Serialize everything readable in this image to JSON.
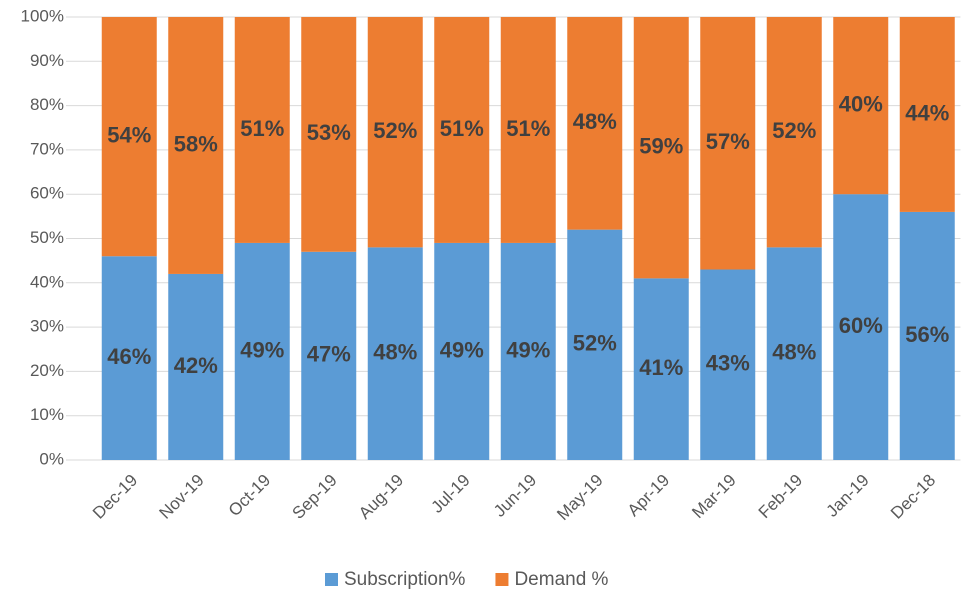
{
  "chart_data": {
    "type": "stacked_bar",
    "categories": [
      "Dec-19",
      "Nov-19",
      "Oct-19",
      "Sep-19",
      "Aug-19",
      "Jul-19",
      "Jun-19",
      "May-19",
      "Apr-19",
      "Mar-19",
      "Feb-19",
      "Jan-19",
      "Dec-18"
    ],
    "series": [
      {
        "name": "Subscription%",
        "color": "#5b9bd5",
        "values": [
          46,
          42,
          49,
          47,
          48,
          49,
          49,
          52,
          41,
          43,
          48,
          60,
          56
        ],
        "value_labels": [
          "46%",
          "42%",
          "49%",
          "47%",
          "48%",
          "49%",
          "49%",
          "52%",
          "41%",
          "43%",
          "48%",
          "60%",
          "56%"
        ]
      },
      {
        "name": "Demand %",
        "color": "#ed7d31",
        "values": [
          54,
          58,
          51,
          53,
          52,
          51,
          51,
          48,
          59,
          57,
          52,
          40,
          44
        ],
        "value_labels": [
          "54%",
          "58%",
          "51%",
          "53%",
          "52%",
          "51%",
          "51%",
          "48%",
          "59%",
          "57%",
          "52%",
          "40%",
          "44%"
        ]
      }
    ],
    "ylim": [
      0,
      100
    ],
    "yticks": [
      {
        "value": 0,
        "label": "0%"
      },
      {
        "value": 10,
        "label": "10%"
      },
      {
        "value": 20,
        "label": "20%"
      },
      {
        "value": 30,
        "label": "30%"
      },
      {
        "value": 40,
        "label": "40%"
      },
      {
        "value": 50,
        "label": "50%"
      },
      {
        "value": 60,
        "label": "60%"
      },
      {
        "value": 70,
        "label": "70%"
      },
      {
        "value": 80,
        "label": "80%"
      },
      {
        "value": 90,
        "label": "90%"
      },
      {
        "value": 100,
        "label": "100%"
      }
    ],
    "grid": true,
    "legend": "bottom"
  }
}
